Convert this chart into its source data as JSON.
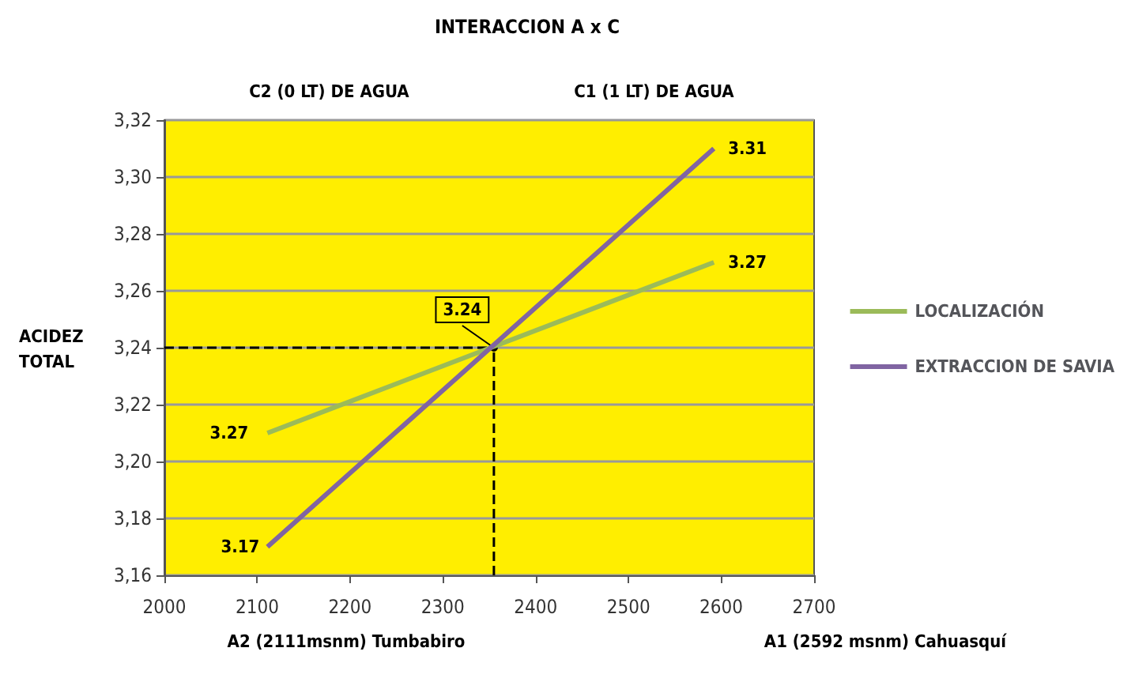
{
  "chart_data": {
    "type": "line",
    "title": "INTERACCION A x C",
    "ylabel": "ACIDEZ\nTOTAL",
    "x": [
      2111,
      2592
    ],
    "series": [
      {
        "name": "LOCALIZACIÓN",
        "color": "#9bbb59",
        "values": [
          3.21,
          3.27
        ],
        "value_labels": [
          null,
          "3.27"
        ]
      },
      {
        "name": "EXTRACCION DE SAVIA",
        "color": "#8064a2",
        "values": [
          3.17,
          3.31
        ],
        "value_labels": [
          "3.17",
          "3.31"
        ]
      }
    ],
    "xlim": [
      2000,
      2700
    ],
    "xticks": [
      2000,
      2100,
      2200,
      2300,
      2400,
      2500,
      2600,
      2700
    ],
    "ylim": [
      3.16,
      3.32
    ],
    "yticks": [
      {
        "value": 3.16,
        "label": "3,16"
      },
      {
        "value": 3.18,
        "label": "3,18"
      },
      {
        "value": 3.2,
        "label": "3,20"
      },
      {
        "value": 3.22,
        "label": "3,22"
      },
      {
        "value": 3.24,
        "label": "3,24"
      },
      {
        "value": 3.26,
        "label": "3,26"
      },
      {
        "value": 3.28,
        "label": "3,28"
      },
      {
        "value": 3.3,
        "label": "3,30"
      },
      {
        "value": 3.32,
        "label": "3,32"
      }
    ],
    "ref_lines": [
      {
        "axis": "x",
        "value": 2355,
        "label": null,
        "color": "#000000",
        "line_style": "dashed"
      },
      {
        "axis": "y",
        "value": 3.24,
        "label": null,
        "color": "#000000",
        "line_style": "dashed"
      }
    ],
    "annotations": [
      {
        "text": "3.24",
        "x": 2355,
        "y": 3.24
      },
      {
        "text": "3.27",
        "x": 2111,
        "y": 3.21
      },
      "C2 (0 LT) DE AGUA",
      "C1 (1 LT) DE AGUA",
      "A2 (2111msnm) Tumbabiro",
      "A1 (2592 msnm) Cahuasquí"
    ],
    "grid": "y",
    "legend": "right",
    "marker": "none",
    "line_style": "solid"
  }
}
